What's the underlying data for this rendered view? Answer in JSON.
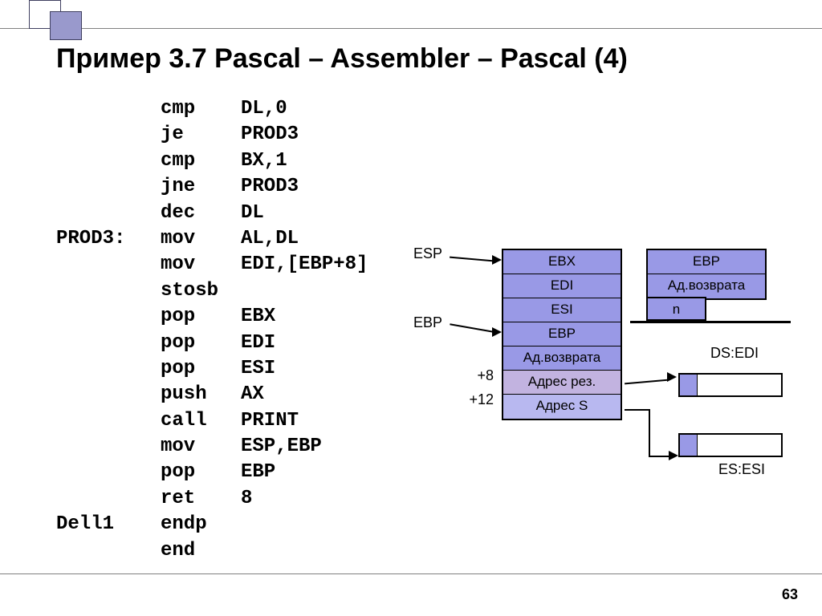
{
  "title": "Пример 3.7 Pascal – Assembler – Pascal (4)",
  "page_number": "63",
  "code": [
    {
      "label": "",
      "mn": "cmp",
      "op": "DL,0"
    },
    {
      "label": "",
      "mn": "je",
      "op": "PROD3"
    },
    {
      "label": "",
      "mn": "cmp",
      "op": "BX,1"
    },
    {
      "label": "",
      "mn": "jne",
      "op": "PROD3"
    },
    {
      "label": "",
      "mn": "dec",
      "op": "DL"
    },
    {
      "label": "PROD3:",
      "mn": "mov",
      "op": "AL,DL"
    },
    {
      "label": "",
      "mn": "mov",
      "op": "EDI,[EBP+8]"
    },
    {
      "label": "",
      "mn": "stosb",
      "op": ""
    },
    {
      "label": "",
      "mn": "pop",
      "op": "EBX"
    },
    {
      "label": "",
      "mn": "pop",
      "op": "EDI"
    },
    {
      "label": "",
      "mn": "pop",
      "op": "ESI"
    },
    {
      "label": "",
      "mn": "push",
      "op": "AX"
    },
    {
      "label": "",
      "mn": "call",
      "op": "PRINT"
    },
    {
      "label": "",
      "mn": "mov",
      "op": "ESP,EBP"
    },
    {
      "label": "",
      "mn": "pop",
      "op": "EBP"
    },
    {
      "label": "",
      "mn": "ret",
      "op": "8"
    },
    {
      "label": "Dell1",
      "mn": "endp",
      "op": ""
    },
    {
      "label": "",
      "mn": "end",
      "op": ""
    }
  ],
  "stack1": [
    "EBX",
    "EDI",
    "ESI",
    "EBP",
    "Ад.возврата",
    "Адрес рез.",
    "Адрес S"
  ],
  "stack1_colors": [
    "#9999e6",
    "#9999e6",
    "#9999e6",
    "#9999e6",
    "#9999e6",
    "#c2b3e0",
    "#b8b8f0"
  ],
  "stack2": [
    "EBP",
    "Ад.возврата"
  ],
  "stack2_colors": [
    "#9999e6",
    "#9999e6"
  ],
  "stack2_half": "n",
  "labels": {
    "esp": "ESP",
    "ebp": "EBP",
    "off8": "+8",
    "off12": "+12",
    "dsedi": "DS:EDI",
    "esesi": "ES:ESI"
  },
  "colors": {
    "accent": "#9999e6",
    "accent2": "#b8b8f0",
    "text": "#000000",
    "bg": "#ffffff"
  }
}
